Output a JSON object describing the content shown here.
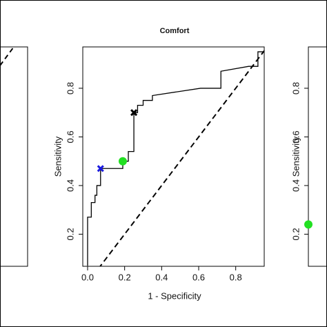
{
  "chart_data": [
    {
      "type": "line",
      "title": "Comfort",
      "xlabel": "1 - Specificity",
      "ylabel": "Sensitivity",
      "xlim": [
        -0.026,
        0.954
      ],
      "ylim": [
        0.068,
        0.97
      ],
      "xticks": [
        {
          "value": 0,
          "label": "0.0"
        },
        0.2,
        0.4,
        0.6,
        0.8
      ],
      "yticks": [
        0.2,
        0.4,
        0.6,
        0.8
      ],
      "series": [
        {
          "color": "#000000",
          "x": [
            0.0,
            0.0,
            0.02,
            0.02,
            0.04,
            0.04,
            0.05,
            0.05,
            0.07,
            0.07,
            0.19,
            0.19,
            0.22,
            0.22,
            0.25,
            0.25,
            0.27,
            0.27,
            0.3,
            0.3,
            0.35,
            0.35,
            0.61,
            0.72,
            0.72,
            0.87,
            0.92,
            0.92,
            0.95
          ],
          "values": [
            0.07,
            0.27,
            0.27,
            0.33,
            0.33,
            0.36,
            0.36,
            0.4,
            0.4,
            0.47,
            0.47,
            0.5,
            0.5,
            0.54,
            0.54,
            0.7,
            0.7,
            0.73,
            0.73,
            0.75,
            0.75,
            0.77,
            0.8,
            0.8,
            0.87,
            0.89,
            0.89,
            0.95,
            0.95
          ]
        }
      ],
      "points": [
        {
          "x": 0.07,
          "y": 0.47,
          "color": "#1a1adf",
          "shape": "cross"
        },
        {
          "x": 0.19,
          "y": 0.5,
          "color": "#22e022",
          "shape": "dot"
        },
        {
          "x": 0.25,
          "y": 0.7,
          "color": "#000000",
          "shape": "cross"
        }
      ]
    },
    {
      "type": "partial",
      "ylabel": "Sensitivity",
      "ylim": [
        0.068,
        0.97
      ],
      "yticks": [
        0.2,
        0.4,
        0.6,
        0.8
      ],
      "points": [
        {
          "y": 0.24,
          "color": "#22e022",
          "shape": "dot"
        }
      ]
    }
  ]
}
